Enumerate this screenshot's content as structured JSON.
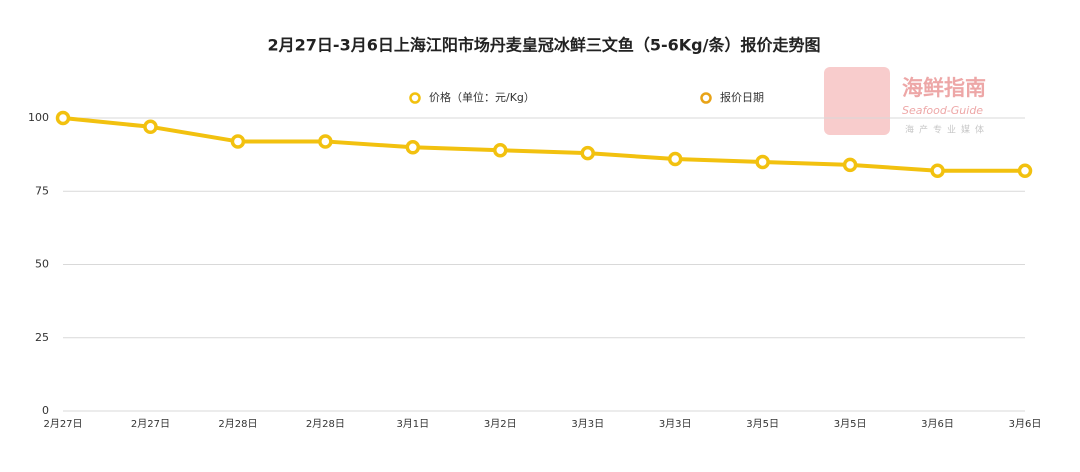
{
  "chart_data": {
    "type": "line",
    "title": "2月27日-3月6日上海江阳市场丹麦皇冠冰鲜三文鱼（5-6Kg/条）报价走势图",
    "categories": [
      "2月27日",
      "2月27日",
      "2月28日",
      "2月28日",
      "3月1日",
      "3月2日",
      "3月3日",
      "3月3日",
      "3月5日",
      "3月5日",
      "3月6日",
      "3月6日"
    ],
    "series": [
      {
        "name": "价格（单位：元/Kg）",
        "color": "#f2c10f",
        "values": [
          100,
          97,
          92,
          92,
          90,
          89,
          88,
          86,
          85,
          84,
          82,
          82
        ]
      },
      {
        "name": "报价日期",
        "color": "#e8a317",
        "values": [
          null,
          null,
          null,
          null,
          null,
          null,
          null,
          null,
          null,
          null,
          null,
          null
        ]
      }
    ],
    "ylim": [
      0,
      100
    ],
    "yticks": [
      0,
      25,
      50,
      75,
      100
    ],
    "grid": true,
    "legend": "top"
  },
  "watermark": {
    "title": "海鲜指南",
    "subtitle": "Seafood-Guide",
    "tagline": "海产专业媒体"
  }
}
